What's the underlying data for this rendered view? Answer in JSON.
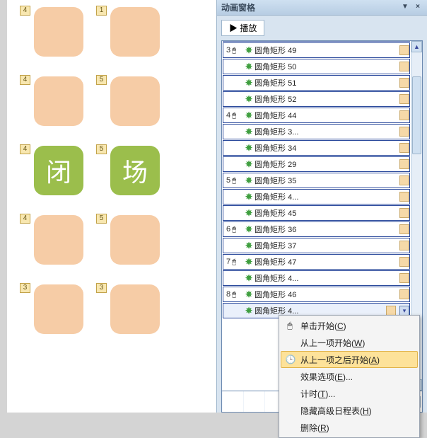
{
  "colors": {
    "tile_orange": "#f6cca6",
    "tile_green": "#9bbe4c",
    "pane_bg": "#d8e4f0",
    "row_border": "#2b4a9c",
    "anim_badge_bg": "#f8e7b0",
    "ctx_hl": "#fde29a"
  },
  "canvas": {
    "tiles": [
      {
        "num": "4",
        "green": false,
        "text": ""
      },
      {
        "num": "1",
        "green": false,
        "text": ""
      },
      {
        "num": "4",
        "green": false,
        "text": ""
      },
      {
        "num": "5",
        "green": false,
        "text": ""
      },
      {
        "num": "4",
        "green": true,
        "text": "闭"
      },
      {
        "num": "5",
        "green": true,
        "text": "场"
      },
      {
        "num": "4",
        "green": false,
        "text": ""
      },
      {
        "num": "5",
        "green": false,
        "text": ""
      },
      {
        "num": "3",
        "green": false,
        "text": ""
      },
      {
        "num": "3",
        "green": false,
        "text": ""
      }
    ]
  },
  "pane": {
    "title": "动画窗格",
    "play": "▶ 播放",
    "items": [
      {
        "num": "",
        "type": "child",
        "label": "圆角矩形 49"
      },
      {
        "num": "3",
        "type": "group",
        "label": "圆角矩形 49"
      },
      {
        "num": "",
        "type": "child",
        "label": "圆角矩形 50"
      },
      {
        "num": "",
        "type": "child",
        "label": "圆角矩形 51"
      },
      {
        "num": "",
        "type": "child",
        "label": "圆角矩形 52"
      },
      {
        "num": "4",
        "type": "group",
        "label": "圆角矩形 44"
      },
      {
        "num": "",
        "type": "child",
        "label": "圆角矩形 3..."
      },
      {
        "num": "",
        "type": "child",
        "label": "圆角矩形 34"
      },
      {
        "num": "",
        "type": "child",
        "label": "圆角矩形 29"
      },
      {
        "num": "5",
        "type": "group",
        "label": "圆角矩形 35"
      },
      {
        "num": "",
        "type": "child",
        "label": "圆角矩形 4..."
      },
      {
        "num": "",
        "type": "child",
        "label": "圆角矩形 45"
      },
      {
        "num": "6",
        "type": "group",
        "label": "圆角矩形 36"
      },
      {
        "num": "",
        "type": "child",
        "label": "圆角矩形 37"
      },
      {
        "num": "7",
        "type": "group",
        "label": "圆角矩形 47"
      },
      {
        "num": "",
        "type": "child",
        "label": "圆角矩形 4..."
      },
      {
        "num": "8",
        "type": "group",
        "label": "圆角矩形 46"
      },
      {
        "num": "",
        "type": "selected",
        "label": "圆角矩形 4..."
      }
    ]
  },
  "menu": {
    "items": [
      {
        "icon": "🖱",
        "label": "单击开始(C)",
        "accel": "C",
        "hl": false
      },
      {
        "icon": "",
        "label": "从上一项开始(W)",
        "accel": "W",
        "hl": false
      },
      {
        "icon": "🕒",
        "label": "从上一项之后开始(A)",
        "accel": "A",
        "hl": true
      },
      {
        "icon": "",
        "label": "效果选项(E)...",
        "accel": "E",
        "hl": false
      },
      {
        "icon": "",
        "label": "计时(T)...",
        "accel": "T",
        "hl": false
      },
      {
        "icon": "",
        "label": "隐藏高级日程表(H)",
        "accel": "H",
        "hl": false
      },
      {
        "icon": "",
        "label": "删除(R)",
        "accel": "R",
        "hl": false
      }
    ]
  }
}
